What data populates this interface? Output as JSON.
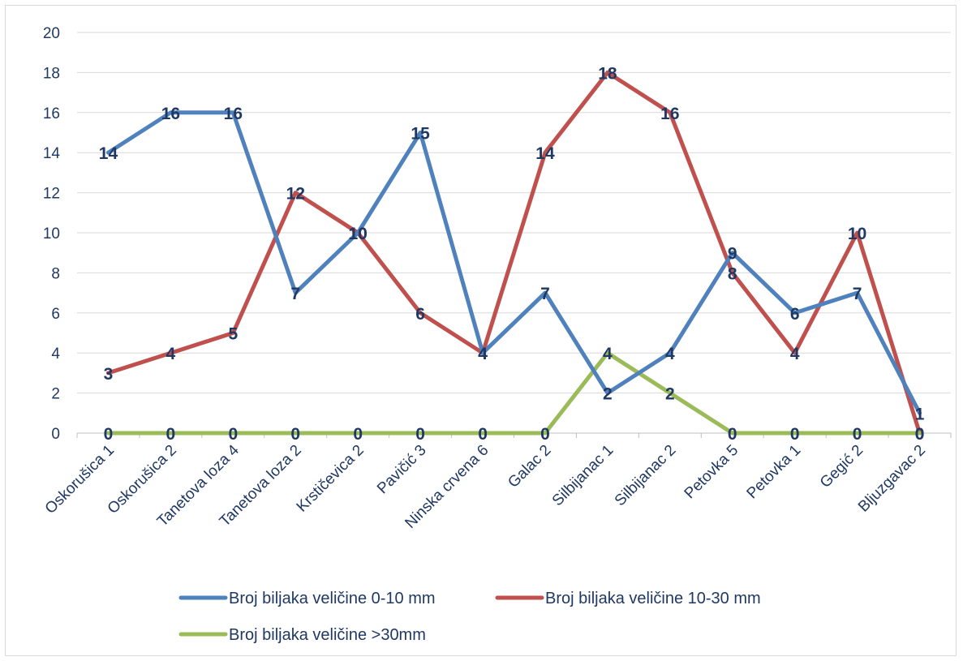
{
  "chart_data": {
    "type": "line",
    "categories": [
      "Oskorušica 1",
      "Oskorušica 2",
      "Tanetova loza 4",
      "Tanetova loza 2",
      "Krstičevica 2",
      "Pavičić 3",
      "Ninska crvena 6",
      "Galac 2",
      "Silbijanac 1",
      "Silbijanac 2",
      "Petovka 5",
      "Petovka 1",
      "Gegić 2",
      "Bljuzgavac 2"
    ],
    "series": [
      {
        "name": "Broj biljaka veličine 0-10 mm",
        "color": "#4f81bd",
        "values": [
          14,
          16,
          16,
          7,
          10,
          15,
          4,
          7,
          2,
          4,
          9,
          6,
          7,
          1
        ]
      },
      {
        "name": "Broj biljaka veličine 10-30 mm",
        "color": "#c0504d",
        "values": [
          3,
          4,
          5,
          12,
          10,
          6,
          4,
          14,
          18,
          16,
          8,
          4,
          10,
          0
        ]
      },
      {
        "name": "Broj biljaka veličine >30mm",
        "color": "#9bbb59",
        "values": [
          0,
          0,
          0,
          0,
          0,
          0,
          0,
          0,
          4,
          2,
          0,
          0,
          0,
          0
        ]
      }
    ],
    "yticks": [
      "0",
      "2",
      "4",
      "6",
      "8",
      "10",
      "12",
      "14",
      "16",
      "18",
      "20"
    ],
    "ylim": [
      0,
      20
    ],
    "grid": true,
    "data_labels": true,
    "legend_position": "bottom",
    "title": "",
    "xlabel": "",
    "ylabel": ""
  }
}
